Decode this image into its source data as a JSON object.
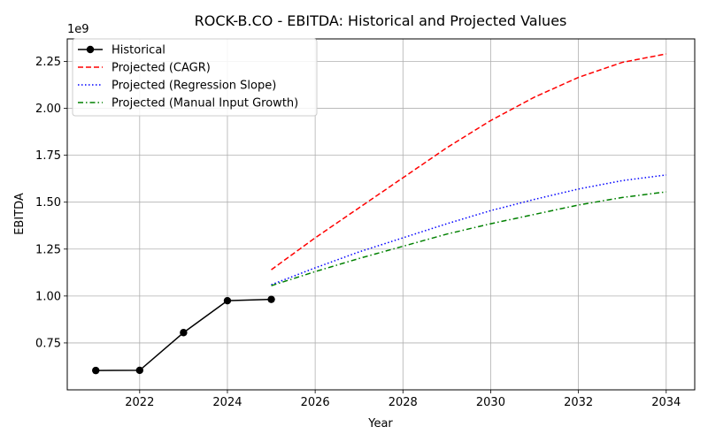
{
  "chart_data": {
    "type": "line",
    "title": "ROCK-B.CO - EBITDA: Historical and Projected Values",
    "xlabel": "Year",
    "ylabel": "EBITDA",
    "y_offset_text": "1e9",
    "xlim": [
      2020.35,
      2034.65
    ],
    "ylim": [
      0.5,
      2.37
    ],
    "y_scale_multiplier": 1000000000,
    "x_ticks": [
      2022,
      2024,
      2026,
      2028,
      2030,
      2032,
      2034
    ],
    "x_tick_labels": [
      "2022",
      "2024",
      "2026",
      "2028",
      "2030",
      "2032",
      "2034"
    ],
    "y_ticks": [
      0.75,
      1.0,
      1.25,
      1.5,
      1.75,
      2.0,
      2.25
    ],
    "y_tick_labels": [
      "0.75",
      "1.00",
      "1.25",
      "1.50",
      "1.75",
      "2.00",
      "2.25"
    ],
    "grid": true,
    "legend_position": "top-left",
    "series": [
      {
        "name": "Historical",
        "color": "#000000",
        "style": "solid-marker",
        "x": [
          2021,
          2022,
          2023,
          2024,
          2025
        ],
        "y": [
          0.603,
          0.604,
          0.805,
          0.975,
          0.982
        ]
      },
      {
        "name": "Projected (CAGR)",
        "color": "#ff0000",
        "style": "dashed",
        "x": [
          2025,
          2026,
          2027,
          2028,
          2029,
          2030,
          2031,
          2032,
          2033,
          2034
        ],
        "y": [
          1.14,
          1.31,
          1.47,
          1.63,
          1.79,
          1.935,
          2.06,
          2.165,
          2.245,
          2.29
        ]
      },
      {
        "name": "Projected (Regression Slope)",
        "color": "#0000ff",
        "style": "dotted",
        "x": [
          2025,
          2026,
          2027,
          2028,
          2029,
          2030,
          2031,
          2032,
          2033,
          2034
        ],
        "y": [
          1.06,
          1.15,
          1.235,
          1.31,
          1.385,
          1.455,
          1.515,
          1.57,
          1.615,
          1.645
        ]
      },
      {
        "name": "Projected (Manual Input Growth)",
        "color": "#008000",
        "style": "dashdot",
        "x": [
          2025,
          2026,
          2027,
          2028,
          2029,
          2030,
          2031,
          2032,
          2033,
          2034
        ],
        "y": [
          1.055,
          1.13,
          1.2,
          1.265,
          1.33,
          1.385,
          1.435,
          1.485,
          1.525,
          1.555
        ]
      }
    ]
  }
}
